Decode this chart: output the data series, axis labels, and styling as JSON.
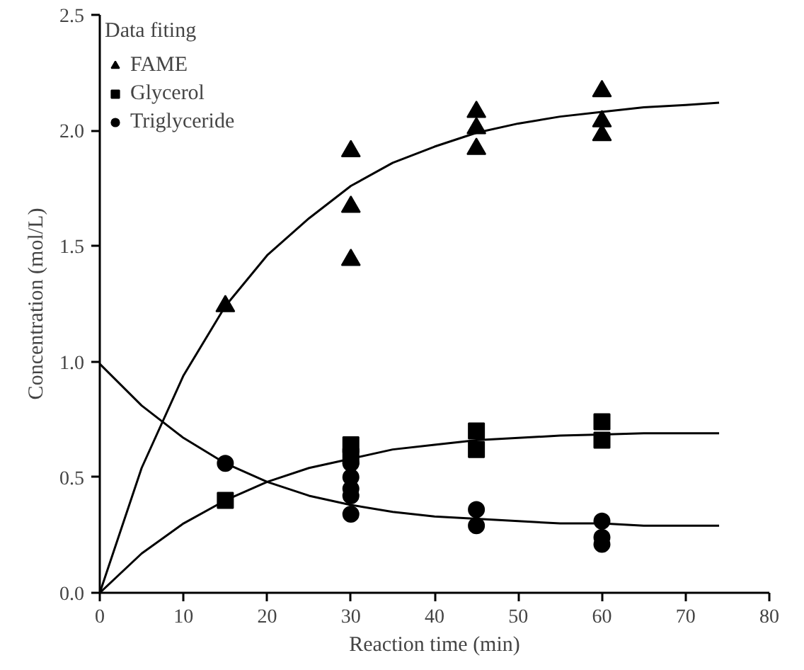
{
  "chart_data": {
    "type": "scatter",
    "xlabel": "Reaction time (min)",
    "ylabel": "Concentration (mol/L)",
    "legend_title": "Data fiting",
    "legend": "top left",
    "grid": false,
    "xlim": [
      0,
      80
    ],
    "xticks": [
      0,
      10,
      20,
      30,
      40,
      50,
      60,
      70,
      80
    ],
    "ylim": [
      0,
      2.5
    ],
    "yticks": [
      {
        "value": 0,
        "label": "0.0"
      },
      {
        "value": 0.5,
        "label": "0.5"
      },
      {
        "value": 1,
        "label": "1.0"
      },
      {
        "value": 1.5,
        "label": "1.5"
      },
      {
        "value": 2,
        "label": "2.0"
      },
      {
        "value": 2.5,
        "label": "2.5"
      }
    ],
    "series": [
      {
        "name": "FAME",
        "marker": "triangle",
        "color": "#000000",
        "x": [
          15,
          30,
          30,
          30,
          45,
          45,
          45,
          60,
          60,
          60
        ],
        "values": [
          1.24,
          1.91,
          1.67,
          1.44,
          2.08,
          2.01,
          1.92,
          2.17,
          2.04,
          1.98
        ]
      },
      {
        "name": "Glycerol",
        "marker": "square",
        "color": "#000000",
        "x": [
          15,
          30,
          30,
          45,
          45,
          60,
          60
        ],
        "values": [
          0.4,
          0.64,
          0.59,
          0.7,
          0.62,
          0.74,
          0.66
        ]
      },
      {
        "name": "Triglyceride",
        "marker": "circle",
        "color": "#000000",
        "x": [
          15,
          30,
          30,
          30,
          30,
          30,
          45,
          45,
          60,
          60,
          60
        ],
        "values": [
          0.56,
          0.56,
          0.5,
          0.45,
          0.42,
          0.34,
          0.36,
          0.29,
          0.31,
          0.24,
          0.21
        ]
      },
      {
        "type": "line",
        "line_style": "solid",
        "color": "#000000",
        "x": [
          0,
          5,
          10,
          15,
          20,
          25,
          30,
          35,
          40,
          45,
          50,
          55,
          60,
          65,
          70,
          74
        ],
        "values": [
          0,
          0.54,
          0.94,
          1.24,
          1.46,
          1.62,
          1.76,
          1.86,
          1.93,
          1.99,
          2.03,
          2.06,
          2.08,
          2.1,
          2.11,
          2.12
        ]
      },
      {
        "type": "line",
        "line_style": "solid",
        "color": "#000000",
        "x": [
          0,
          5,
          10,
          15,
          20,
          25,
          30,
          35,
          40,
          45,
          50,
          55,
          60,
          65,
          70,
          74
        ],
        "values": [
          0,
          0.17,
          0.3,
          0.4,
          0.48,
          0.54,
          0.58,
          0.62,
          0.64,
          0.66,
          0.67,
          0.68,
          0.685,
          0.69,
          0.69,
          0.69
        ]
      },
      {
        "type": "line",
        "line_style": "solid",
        "color": "#000000",
        "x": [
          0,
          5,
          10,
          15,
          20,
          25,
          30,
          35,
          40,
          45,
          50,
          55,
          60,
          65,
          70,
          74
        ],
        "values": [
          0.99,
          0.81,
          0.67,
          0.56,
          0.48,
          0.42,
          0.38,
          0.35,
          0.33,
          0.32,
          0.31,
          0.3,
          0.3,
          0.29,
          0.29,
          0.29
        ]
      }
    ]
  }
}
